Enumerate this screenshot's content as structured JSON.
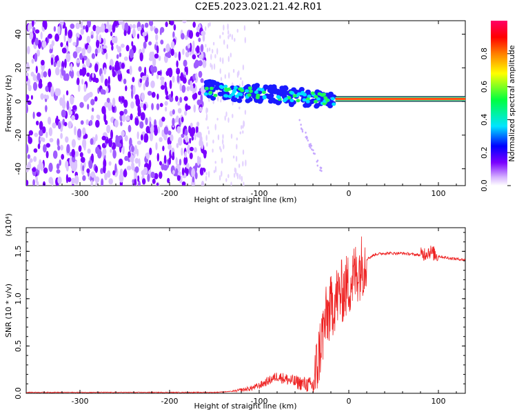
{
  "title": "C2E5.2023.021.21.42.R01",
  "chart_data": [
    {
      "type": "heatmap",
      "xlabel": "Height of straight line (km)",
      "ylabel": "Frequency (Hz)",
      "xlim": [
        -360,
        130
      ],
      "ylim": [
        -50,
        48
      ],
      "x_ticks": [
        -300,
        -200,
        -100,
        0,
        100
      ],
      "y_ticks": [
        -40,
        -20,
        0,
        20,
        40
      ],
      "colorbar": {
        "label": "Normalized spectral amplitude",
        "range": [
          0,
          1
        ],
        "ticks": [
          "0.0",
          "0.2",
          "0.4",
          "0.6",
          "0.8"
        ],
        "colormap": [
          "#ffffff",
          "#d7b4ff",
          "#7a00ff",
          "#0000ff",
          "#00e5ff",
          "#00ff40",
          "#ffff00",
          "#ff7f00",
          "#ff0000",
          "#ff0066"
        ]
      },
      "features": [
        {
          "x_range": [
            -360,
            -160
          ],
          "freq_range": [
            -50,
            48
          ],
          "amplitude": 0.2,
          "description_level": "noise"
        },
        {
          "x_range": [
            -160,
            -15
          ],
          "freq_center_start": 7,
          "freq_center_end": 1,
          "amplitude": 0.55
        },
        {
          "x_range": [
            -15,
            130
          ],
          "freq_center": 1.5,
          "amplitude": 0.9
        }
      ]
    },
    {
      "type": "line",
      "xlabel": "Height of straight line (km)",
      "ylabel": "SNR (10 * v/v)",
      "y_multiplier": "(x10⁴)",
      "xlim": [
        -360,
        130
      ],
      "ylim": [
        0,
        1.75
      ],
      "x_ticks": [
        -300,
        -200,
        -100,
        0,
        100
      ],
      "y_ticks": [
        "0.0",
        "0.5",
        "1.0",
        "1.5"
      ],
      "color": "#ee2222",
      "series": [
        {
          "x": [
            -360,
            -300,
            -250,
            -200,
            -150,
            -130,
            -110,
            -100,
            -90,
            -80,
            -70,
            -60,
            -50,
            -40,
            -35,
            -30,
            -25,
            -20,
            -15,
            -10,
            -5,
            0,
            10,
            20,
            30,
            40,
            60,
            80,
            90,
            100,
            110,
            120,
            130
          ],
          "y": [
            0.01,
            0.01,
            0.01,
            0.01,
            0.01,
            0.02,
            0.05,
            0.08,
            0.13,
            0.18,
            0.15,
            0.12,
            0.1,
            0.08,
            0.3,
            0.6,
            0.8,
            0.9,
            1.0,
            1.05,
            1.1,
            1.15,
            1.3,
            1.42,
            1.47,
            1.48,
            1.48,
            1.46,
            1.5,
            1.45,
            1.43,
            1.42,
            1.41
          ]
        }
      ]
    }
  ]
}
